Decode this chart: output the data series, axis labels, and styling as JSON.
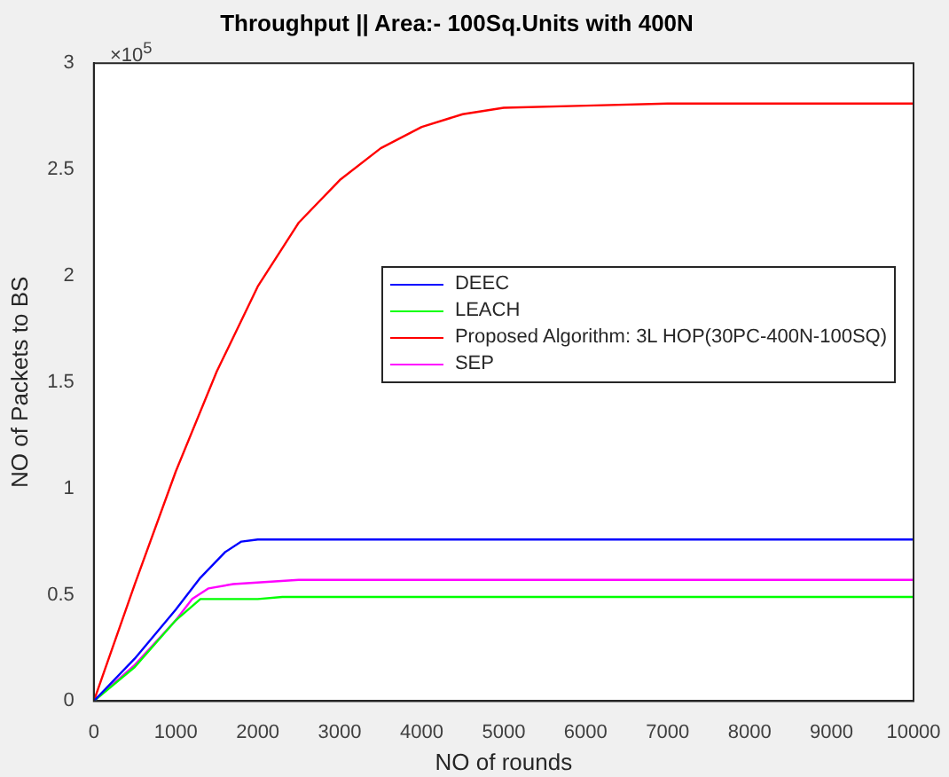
{
  "chart_data": {
    "type": "line",
    "title": "Throughput || Area:- 100Sq.Units with 400N",
    "xlabel": "NO of rounds",
    "ylabel": "NO of Packets to BS",
    "annotations": [
      "×10$^{5}$"
    ],
    "xlim": [
      0,
      10000
    ],
    "xticks": [
      0,
      1000,
      2000,
      3000,
      4000,
      5000,
      6000,
      7000,
      8000,
      9000,
      10000
    ],
    "ylim": [
      0,
      3
    ],
    "yticks": [
      0,
      0.5,
      1,
      1.5,
      2,
      2.5,
      3
    ],
    "legend": "right",
    "marker": "none",
    "line_style": "solid",
    "series": [
      {
        "name": "DEEC",
        "color": "#0000ff",
        "x": [
          0,
          500,
          1000,
          1300,
          1600,
          1800,
          2000,
          10000
        ],
        "values": [
          0,
          0.2,
          0.43,
          0.58,
          0.7,
          0.75,
          0.76,
          0.76
        ]
      },
      {
        "name": "LEACH",
        "color": "#00ff00",
        "x": [
          0,
          500,
          1000,
          1300,
          2000,
          2300,
          10000
        ],
        "values": [
          0,
          0.16,
          0.38,
          0.48,
          0.48,
          0.49,
          0.49
        ]
      },
      {
        "name": "Proposed Algorithm: 3L HOP(30PC-400N-100SQ)",
        "color": "#ff0000",
        "x": [
          0,
          500,
          1000,
          1500,
          2000,
          2500,
          3000,
          3500,
          4000,
          4500,
          5000,
          6000,
          7000,
          10000
        ],
        "values": [
          0,
          0.55,
          1.08,
          1.55,
          1.95,
          2.25,
          2.45,
          2.6,
          2.7,
          2.76,
          2.79,
          2.8,
          2.81,
          2.81
        ]
      },
      {
        "name": "SEP",
        "color": "#ff00ff",
        "x": [
          0,
          500,
          1000,
          1200,
          1400,
          1700,
          2500,
          10000
        ],
        "values": [
          0,
          0.17,
          0.38,
          0.48,
          0.53,
          0.55,
          0.57,
          0.57
        ]
      }
    ]
  }
}
